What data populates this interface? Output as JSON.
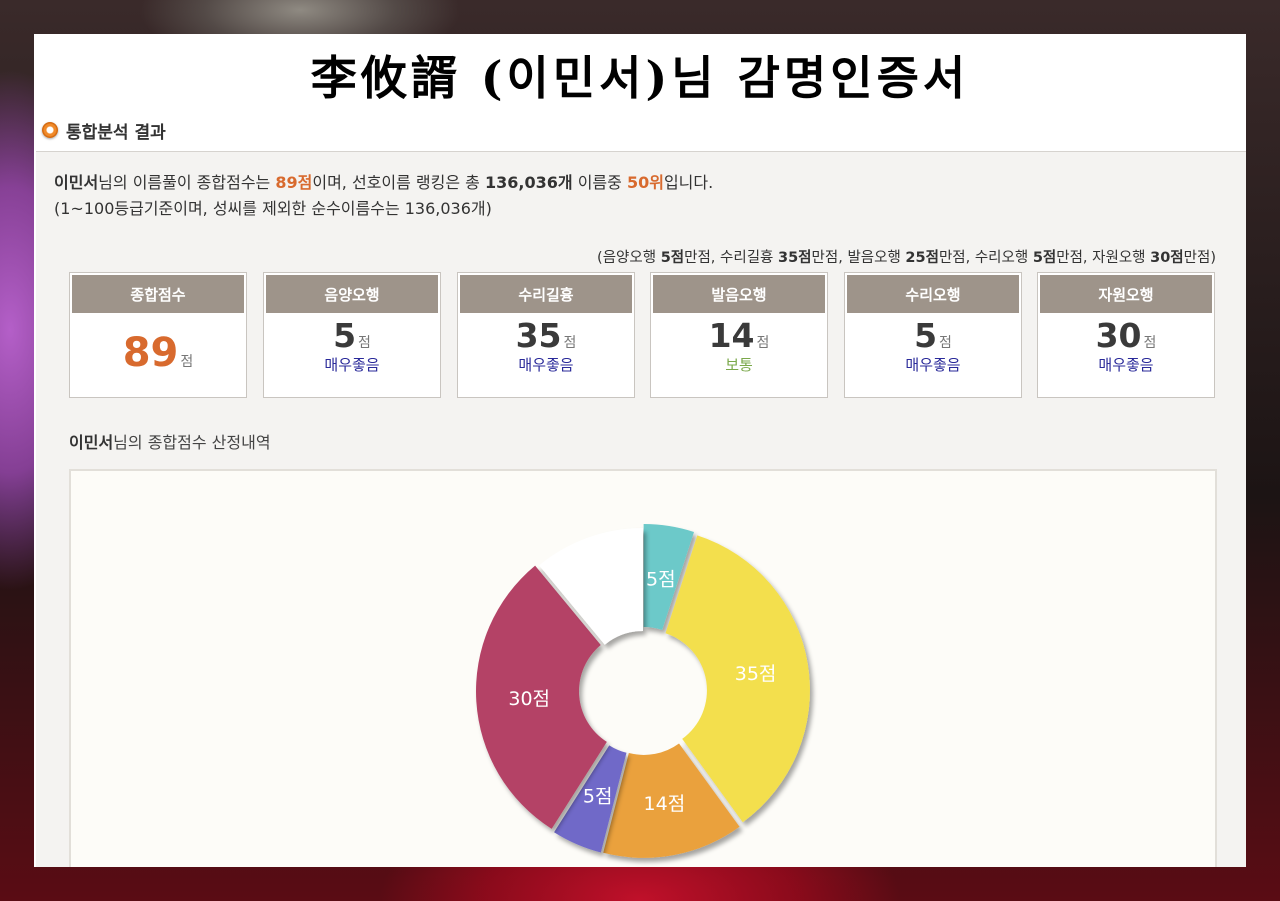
{
  "page": {
    "title": "李攸諝 (이민서)님 감명인증서"
  },
  "section": {
    "title": "통합분석 결과"
  },
  "summary": {
    "name": "이민서",
    "t1": "님의 이름풀이 종합점수는 ",
    "score": "89점",
    "t2": "이며, 선호이름 랭킹은 총 ",
    "total": "136,036개",
    "t3": " 이름중 ",
    "rank": "50위",
    "t4": "입니다.",
    "line2": "(1~100등급기준이며, 성씨를 제외한 순수이름수는 136,036개)"
  },
  "max_scores": {
    "open": "(",
    "l1": "음양오행 ",
    "v1": "5점",
    "s1": "만점, ",
    "l2": "수리길흉 ",
    "v2": "35점",
    "s2": "만점, ",
    "l3": "발음오행 ",
    "v3": "25점",
    "s3": "만점, ",
    "l4": "수리오행 ",
    "v4": "5점",
    "s4": "만점, ",
    "l5": "자원오행 ",
    "v5": "30점",
    "s5": "만점)"
  },
  "boxes": [
    {
      "label": "종합점수",
      "value": "89",
      "unit": "점",
      "grade": ""
    },
    {
      "label": "음양오행",
      "value": "5",
      "unit": "점",
      "grade": "매우좋음"
    },
    {
      "label": "수리길흉",
      "value": "35",
      "unit": "점",
      "grade": "매우좋음"
    },
    {
      "label": "발음오행",
      "value": "14",
      "unit": "점",
      "grade": "보통"
    },
    {
      "label": "수리오행",
      "value": "5",
      "unit": "점",
      "grade": "매우좋음"
    },
    {
      "label": "자원오행",
      "value": "30",
      "unit": "점",
      "grade": "매우좋음"
    }
  ],
  "detail": {
    "name": "이민서",
    "text": "님의 종합점수 산정내역"
  },
  "chart_data": {
    "type": "pie",
    "donut": true,
    "title": "",
    "slices": [
      {
        "label": "5점",
        "value": 5,
        "color": "#6cc9c9"
      },
      {
        "label": "35점",
        "value": 35,
        "color": "#f3df4d"
      },
      {
        "label": "14점",
        "value": 14,
        "color": "#eaa13d"
      },
      {
        "label": "5점",
        "value": 5,
        "color": "#6f69c8"
      },
      {
        "label": "30점",
        "value": 30,
        "color": "#b44266"
      },
      {
        "label": "",
        "value": 11,
        "color": "#ffffff"
      }
    ]
  },
  "colors": {
    "accent_orange": "#d86a2e",
    "box_header": "#9e948a",
    "grade_blue": "#2a2a9a",
    "grade_green": "#7aa84a"
  }
}
